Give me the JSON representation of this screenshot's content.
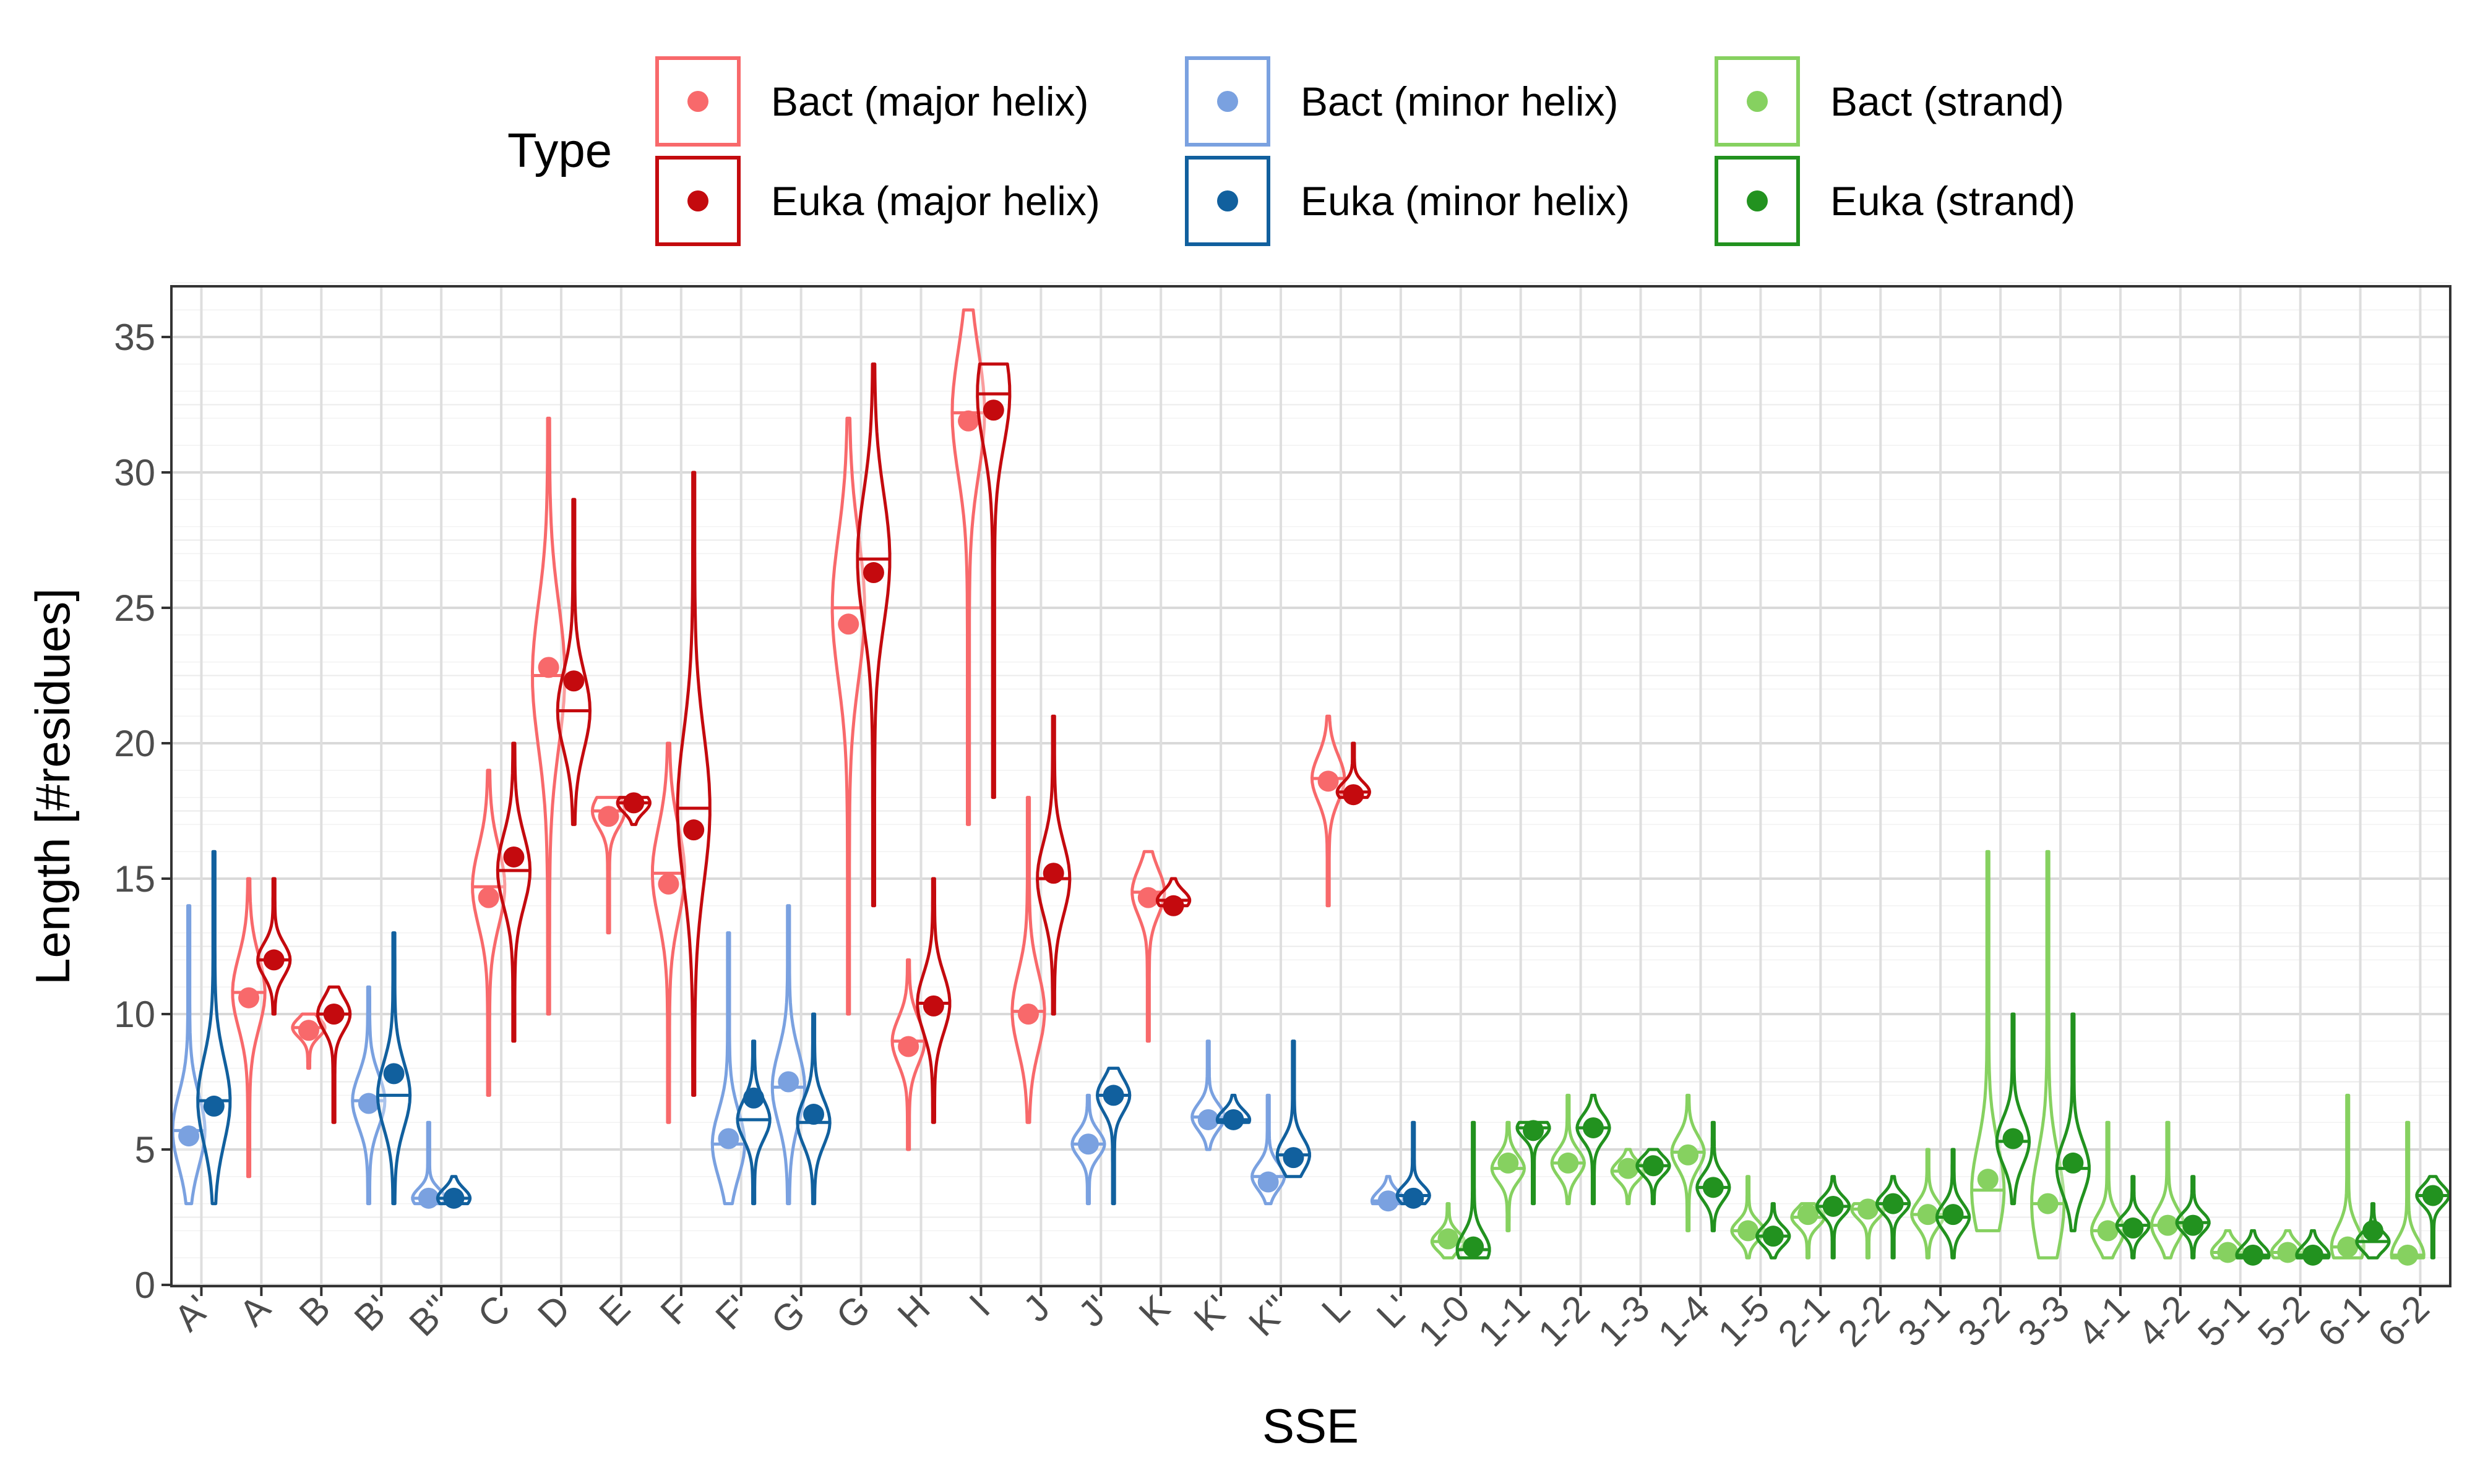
{
  "chart_data": {
    "type": "violin",
    "xlabel": "SSE",
    "ylabel": "Length [#residues]",
    "ylim": [
      0,
      37
    ],
    "yticks": [
      0,
      5,
      10,
      15,
      20,
      25,
      30,
      35
    ],
    "grid": true,
    "legend": {
      "title": "Type",
      "placement": "top",
      "entries": [
        {
          "key": "bact_major",
          "label": "Bact (major helix)",
          "color": "#f8696b"
        },
        {
          "key": "euka_major",
          "label": "Euka (major helix)",
          "color": "#c40a0e"
        },
        {
          "key": "bact_minor",
          "label": "Bact (minor helix)",
          "color": "#7aa1e0"
        },
        {
          "key": "euka_minor",
          "label": "Euka (minor helix)",
          "color": "#11609e"
        },
        {
          "key": "bact_strand",
          "label": "Bact (strand)",
          "color": "#86d160"
        },
        {
          "key": "euka_strand",
          "label": "Euka (strand)",
          "color": "#22921f"
        }
      ]
    },
    "categories": [
      "A'",
      "A",
      "B",
      "B'",
      "B''",
      "C",
      "D",
      "E",
      "F",
      "F'",
      "G'",
      "G",
      "H",
      "I",
      "J",
      "J'",
      "K",
      "K'",
      "K''",
      "L",
      "L'",
      "1-0",
      "1-1",
      "1-2",
      "1-3",
      "1-4",
      "1-5",
      "2-1",
      "2-2",
      "3-1",
      "3-2",
      "3-3",
      "4-1",
      "4-2",
      "5-1",
      "5-2",
      "6-1",
      "6-2"
    ],
    "series": [
      {
        "type": "bact_minor",
        "sse": "A'",
        "min": 3,
        "max": 14,
        "median": 5.7,
        "mean": 5.5
      },
      {
        "type": "euka_minor",
        "sse": "A'",
        "min": 3,
        "max": 16,
        "median": 6.8,
        "mean": 6.6
      },
      {
        "type": "bact_major",
        "sse": "A",
        "min": 4,
        "max": 15,
        "median": 10.8,
        "mean": 10.6
      },
      {
        "type": "euka_major",
        "sse": "A",
        "min": 10,
        "max": 15,
        "median": 12,
        "mean": 12
      },
      {
        "type": "bact_major",
        "sse": "B",
        "min": 8,
        "max": 10,
        "median": 9.5,
        "mean": 9.4
      },
      {
        "type": "euka_major",
        "sse": "B",
        "min": 6,
        "max": 11,
        "median": 10,
        "mean": 10
      },
      {
        "type": "bact_minor",
        "sse": "B'",
        "min": 3,
        "max": 11,
        "median": 6.8,
        "mean": 6.7
      },
      {
        "type": "euka_minor",
        "sse": "B'",
        "min": 3,
        "max": 13,
        "median": 7,
        "mean": 7.8
      },
      {
        "type": "bact_minor",
        "sse": "B''",
        "min": 3,
        "max": 6,
        "median": 3.2,
        "mean": 3.2
      },
      {
        "type": "euka_minor",
        "sse": "B''",
        "min": 3,
        "max": 4,
        "median": 3.2,
        "mean": 3.2
      },
      {
        "type": "bact_major",
        "sse": "C",
        "min": 7,
        "max": 19,
        "median": 14.7,
        "mean": 14.3
      },
      {
        "type": "euka_major",
        "sse": "C",
        "min": 9,
        "max": 20,
        "median": 15.3,
        "mean": 15.8
      },
      {
        "type": "bact_major",
        "sse": "D",
        "min": 10,
        "max": 32,
        "median": 22.5,
        "mean": 22.8
      },
      {
        "type": "euka_major",
        "sse": "D",
        "min": 17,
        "max": 29,
        "median": 21.2,
        "mean": 22.3
      },
      {
        "type": "bact_major",
        "sse": "E",
        "min": 13,
        "max": 18,
        "median": 17.5,
        "mean": 17.3
      },
      {
        "type": "euka_major",
        "sse": "E",
        "min": 17,
        "max": 18,
        "median": 17.8,
        "mean": 17.8
      },
      {
        "type": "bact_major",
        "sse": "F",
        "min": 6,
        "max": 20,
        "median": 15.2,
        "mean": 14.8
      },
      {
        "type": "euka_major",
        "sse": "F",
        "min": 7,
        "max": 30,
        "median": 17.6,
        "mean": 16.8
      },
      {
        "type": "bact_minor",
        "sse": "F'",
        "min": 3,
        "max": 13,
        "median": 5.2,
        "mean": 5.4
      },
      {
        "type": "euka_minor",
        "sse": "F'",
        "min": 3,
        "max": 9,
        "median": 6.1,
        "mean": 6.9
      },
      {
        "type": "bact_minor",
        "sse": "G'",
        "min": 3,
        "max": 14,
        "median": 7.3,
        "mean": 7.5
      },
      {
        "type": "euka_minor",
        "sse": "G'",
        "min": 3,
        "max": 10,
        "median": 6,
        "mean": 6.3
      },
      {
        "type": "bact_major",
        "sse": "G",
        "min": 10,
        "max": 32,
        "median": 25,
        "mean": 24.4
      },
      {
        "type": "euka_major",
        "sse": "G",
        "min": 14,
        "max": 34,
        "median": 26.8,
        "mean": 26.3
      },
      {
        "type": "bact_major",
        "sse": "H",
        "min": 5,
        "max": 12,
        "median": 9,
        "mean": 8.8
      },
      {
        "type": "euka_major",
        "sse": "H",
        "min": 6,
        "max": 15,
        "median": 10.4,
        "mean": 10.3
      },
      {
        "type": "bact_major",
        "sse": "I",
        "min": 17,
        "max": 36,
        "median": 32.2,
        "mean": 31.9
      },
      {
        "type": "euka_major",
        "sse": "I",
        "min": 18,
        "max": 34,
        "median": 32.9,
        "mean": 32.3
      },
      {
        "type": "bact_major",
        "sse": "J",
        "min": 6,
        "max": 18,
        "median": 10.1,
        "mean": 10
      },
      {
        "type": "euka_major",
        "sse": "J",
        "min": 10,
        "max": 21,
        "median": 15,
        "mean": 15.2
      },
      {
        "type": "bact_minor",
        "sse": "J'",
        "min": 3,
        "max": 7,
        "median": 5.2,
        "mean": 5.2
      },
      {
        "type": "euka_minor",
        "sse": "J'",
        "min": 3,
        "max": 8,
        "median": 7,
        "mean": 7
      },
      {
        "type": "bact_major",
        "sse": "K",
        "min": 9,
        "max": 16,
        "median": 14.5,
        "mean": 14.3
      },
      {
        "type": "euka_major",
        "sse": "K",
        "min": 14,
        "max": 15,
        "median": 14.2,
        "mean": 14
      },
      {
        "type": "bact_minor",
        "sse": "K'",
        "min": 5,
        "max": 9,
        "median": 6.2,
        "mean": 6.1
      },
      {
        "type": "euka_minor",
        "sse": "K'",
        "min": 6,
        "max": 7,
        "median": 6.1,
        "mean": 6.1
      },
      {
        "type": "bact_minor",
        "sse": "K''",
        "min": 3,
        "max": 7,
        "median": 4,
        "mean": 3.8
      },
      {
        "type": "euka_minor",
        "sse": "K''",
        "min": 4,
        "max": 9,
        "median": 4.8,
        "mean": 4.7
      },
      {
        "type": "bact_major",
        "sse": "L",
        "min": 14,
        "max": 21,
        "median": 18.7,
        "mean": 18.6
      },
      {
        "type": "euka_major",
        "sse": "L",
        "min": 18,
        "max": 20,
        "median": 18.2,
        "mean": 18.1
      },
      {
        "type": "bact_minor",
        "sse": "L'",
        "min": 3,
        "max": 4,
        "median": 3.1,
        "mean": 3.1
      },
      {
        "type": "euka_minor",
        "sse": "L'",
        "min": 3,
        "max": 6,
        "median": 3.3,
        "mean": 3.2
      },
      {
        "type": "bact_strand",
        "sse": "1-0",
        "min": 1,
        "max": 3,
        "median": 1.6,
        "mean": 1.7
      },
      {
        "type": "euka_strand",
        "sse": "1-0",
        "min": 1,
        "max": 6,
        "median": 1.3,
        "mean": 1.4
      },
      {
        "type": "bact_strand",
        "sse": "1-1",
        "min": 2,
        "max": 6,
        "median": 4.3,
        "mean": 4.5
      },
      {
        "type": "euka_strand",
        "sse": "1-1",
        "min": 3,
        "max": 6,
        "median": 5.8,
        "mean": 5.7
      },
      {
        "type": "bact_strand",
        "sse": "1-2",
        "min": 3,
        "max": 7,
        "median": 4.5,
        "mean": 4.5
      },
      {
        "type": "euka_strand",
        "sse": "1-2",
        "min": 3,
        "max": 7,
        "median": 5.8,
        "mean": 5.8
      },
      {
        "type": "bact_strand",
        "sse": "1-3",
        "min": 3,
        "max": 5,
        "median": 4.2,
        "mean": 4.3
      },
      {
        "type": "euka_strand",
        "sse": "1-3",
        "min": 3,
        "max": 5,
        "median": 4.4,
        "mean": 4.4
      },
      {
        "type": "bact_strand",
        "sse": "1-4",
        "min": 2,
        "max": 7,
        "median": 4.9,
        "mean": 4.8
      },
      {
        "type": "euka_strand",
        "sse": "1-4",
        "min": 2,
        "max": 6,
        "median": 3.6,
        "mean": 3.6
      },
      {
        "type": "bact_strand",
        "sse": "1-5",
        "min": 1,
        "max": 4,
        "median": 2,
        "mean": 2
      },
      {
        "type": "euka_strand",
        "sse": "1-5",
        "min": 1,
        "max": 3,
        "median": 1.8,
        "mean": 1.8
      },
      {
        "type": "bact_strand",
        "sse": "2-1",
        "min": 1,
        "max": 3,
        "median": 2.5,
        "mean": 2.6
      },
      {
        "type": "euka_strand",
        "sse": "2-1",
        "min": 1,
        "max": 4,
        "median": 2.9,
        "mean": 2.9
      },
      {
        "type": "bact_strand",
        "sse": "2-2",
        "min": 1,
        "max": 3,
        "median": 2.8,
        "mean": 2.8
      },
      {
        "type": "euka_strand",
        "sse": "2-2",
        "min": 1,
        "max": 4,
        "median": 3,
        "mean": 3
      },
      {
        "type": "bact_strand",
        "sse": "3-1",
        "min": 1,
        "max": 5,
        "median": 2.6,
        "mean": 2.6
      },
      {
        "type": "euka_strand",
        "sse": "3-1",
        "min": 1,
        "max": 5,
        "median": 2.5,
        "mean": 2.6
      },
      {
        "type": "bact_strand",
        "sse": "3-2",
        "min": 2,
        "max": 16,
        "median": 3.5,
        "mean": 3.9
      },
      {
        "type": "euka_strand",
        "sse": "3-2",
        "min": 3,
        "max": 10,
        "median": 5.3,
        "mean": 5.4
      },
      {
        "type": "bact_strand",
        "sse": "3-3",
        "min": 1,
        "max": 16,
        "median": 3,
        "mean": 3
      },
      {
        "type": "euka_strand",
        "sse": "3-3",
        "min": 2,
        "max": 10,
        "median": 4.3,
        "mean": 4.5
      },
      {
        "type": "bact_strand",
        "sse": "4-1",
        "min": 1,
        "max": 6,
        "median": 2,
        "mean": 2
      },
      {
        "type": "euka_strand",
        "sse": "4-1",
        "min": 1,
        "max": 4,
        "median": 2.2,
        "mean": 2.1
      },
      {
        "type": "bact_strand",
        "sse": "4-2",
        "min": 1,
        "max": 6,
        "median": 2.2,
        "mean": 2.2
      },
      {
        "type": "euka_strand",
        "sse": "4-2",
        "min": 1,
        "max": 4,
        "median": 2.3,
        "mean": 2.2
      },
      {
        "type": "bact_strand",
        "sse": "5-1",
        "min": 1,
        "max": 2,
        "median": 1.2,
        "mean": 1.2
      },
      {
        "type": "euka_strand",
        "sse": "5-1",
        "min": 1,
        "max": 2,
        "median": 1.1,
        "mean": 1.1
      },
      {
        "type": "bact_strand",
        "sse": "5-2",
        "min": 1,
        "max": 2,
        "median": 1.2,
        "mean": 1.2
      },
      {
        "type": "euka_strand",
        "sse": "5-2",
        "min": 1,
        "max": 2,
        "median": 1.1,
        "mean": 1.1
      },
      {
        "type": "bact_strand",
        "sse": "6-1",
        "min": 1,
        "max": 7,
        "median": 1.4,
        "mean": 1.4
      },
      {
        "type": "euka_strand",
        "sse": "6-1",
        "min": 1,
        "max": 3,
        "median": 1.6,
        "mean": 2
      },
      {
        "type": "bact_strand",
        "sse": "6-2",
        "min": 1,
        "max": 6,
        "median": 1.1,
        "mean": 1.1
      },
      {
        "type": "euka_strand",
        "sse": "6-2",
        "min": 1,
        "max": 4,
        "median": 3.3,
        "mean": 3.3
      }
    ]
  }
}
